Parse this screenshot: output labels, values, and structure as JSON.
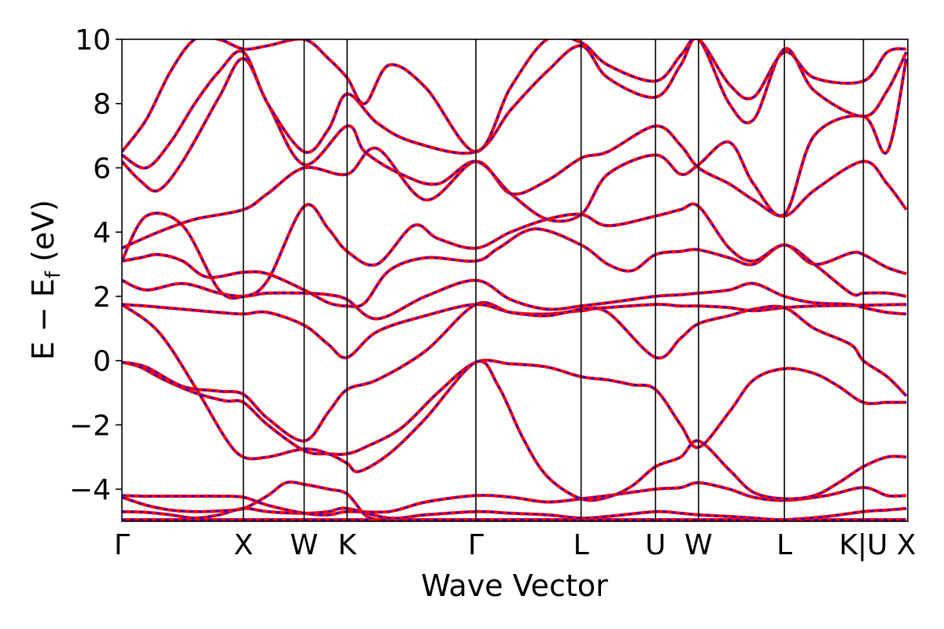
{
  "chart_data": {
    "type": "line",
    "title": "",
    "xlabel": "Wave Vector",
    "ylabel": "E − E",
    "ylabel_subscript": "f",
    "ylabel_unit": " (eV)",
    "ylim": [
      -5,
      10
    ],
    "yticks": [
      -4,
      -2,
      0,
      2,
      4,
      6,
      8,
      10
    ],
    "ytick_labels": [
      "−4",
      "−2",
      "0",
      "2",
      "4",
      "6",
      "8",
      "10"
    ],
    "xlim": [
      0,
      6.47
    ],
    "grid": false,
    "legend": "none",
    "high_symmetry_points": [
      {
        "label": "Γ",
        "x": 0.0
      },
      {
        "label": "X",
        "x": 1.0
      },
      {
        "label": "W",
        "x": 1.5
      },
      {
        "label": "K",
        "x": 1.854
      },
      {
        "label": "Γ",
        "x": 2.914
      },
      {
        "label": "L",
        "x": 3.78
      },
      {
        "label": "U",
        "x": 4.393
      },
      {
        "label": "W",
        "x": 4.747
      },
      {
        "label": "L",
        "x": 5.454
      },
      {
        "label": "K|U",
        "x": 6.104
      },
      {
        "label": "X",
        "x": 6.458
      }
    ],
    "series": [
      {
        "color_primary": "#ff0000",
        "color_overlay": "#0000ff",
        "bands": [
          {
            "x": [
              0,
              0.1,
              0.2,
              0.35,
              0.5,
              0.7,
              0.85,
              1.0,
              1.2,
              1.5,
              1.7,
              1.854,
              2.2,
              2.5,
              2.914,
              3.2,
              3.5,
              3.78,
              4.0,
              4.393,
              4.6,
              4.747,
              5.0,
              5.2,
              5.454,
              5.8,
              6.104,
              6.3,
              6.458
            ],
            "y": [
              -4.95,
              -4.95,
              -4.95,
              -4.95,
              -4.95,
              -4.95,
              -4.95,
              -4.95,
              -4.95,
              -4.95,
              -4.95,
              -4.95,
              -4.95,
              -4.95,
              -4.95,
              -4.95,
              -4.95,
              -4.95,
              -4.95,
              -4.95,
              -4.95,
              -4.95,
              -4.95,
              -4.95,
              -4.95,
              -4.95,
              -4.95,
              -4.95,
              -4.95
            ]
          },
          {
            "x": [
              0,
              0.2,
              0.4,
              0.6,
              0.8,
              1.0,
              1.2,
              1.5,
              1.7,
              1.854,
              2.2,
              2.5,
              2.914,
              3.2,
              3.5,
              3.78,
              4.0,
              4.393,
              4.6,
              4.747,
              5.0,
              5.2,
              5.454,
              5.8,
              6.104,
              6.3,
              6.458
            ],
            "y": [
              -4.7,
              -4.72,
              -4.8,
              -4.9,
              -4.8,
              -4.6,
              -4.7,
              -4.75,
              -4.7,
              -4.6,
              -4.9,
              -4.8,
              -4.7,
              -4.75,
              -4.8,
              -4.9,
              -4.85,
              -4.7,
              -4.75,
              -4.8,
              -4.85,
              -4.9,
              -4.95,
              -4.85,
              -4.7,
              -4.65,
              -4.6
            ]
          },
          {
            "x": [
              0,
              0.2,
              0.4,
              0.6,
              0.8,
              1.0,
              1.2,
              1.5,
              1.7,
              1.854,
              2.2,
              2.5,
              2.914,
              3.2,
              3.5,
              3.78,
              4.0,
              4.393,
              4.6,
              4.747,
              5.0,
              5.2,
              5.454,
              5.8,
              6.104,
              6.3,
              6.458
            ],
            "y": [
              -4.2,
              -4.22,
              -4.22,
              -4.22,
              -4.22,
              -4.25,
              -4.5,
              -4.75,
              -4.8,
              -4.7,
              -4.7,
              -4.4,
              -4.2,
              -4.25,
              -4.4,
              -4.3,
              -4.2,
              -4.0,
              -3.95,
              -3.8,
              -4.0,
              -4.25,
              -4.35,
              -4.2,
              -3.95,
              -4.2,
              -4.2
            ]
          },
          {
            "x": [
              0,
              0.2,
              0.4,
              0.6,
              0.8,
              1.0,
              1.2,
              1.35,
              1.5,
              1.7,
              1.854,
              2.0,
              2.1
            ],
            "y": [
              -4.25,
              -4.5,
              -4.65,
              -4.7,
              -4.68,
              -4.6,
              -4.2,
              -3.8,
              -3.85,
              -4.0,
              -4.15,
              -4.8,
              -4.95
            ]
          },
          {
            "x": [
              0,
              0.15,
              0.35,
              0.6,
              0.85,
              1.0,
              1.2,
              1.5,
              1.7,
              1.854,
              2.0,
              2.3,
              2.6,
              2.914,
              3.2,
              3.5,
              3.78,
              4.0,
              4.2,
              4.393,
              4.6,
              4.747,
              5.0,
              5.2,
              5.454,
              5.7,
              5.9,
              6.104,
              6.3,
              6.458
            ],
            "y": [
              -0.05,
              -0.2,
              -0.6,
              -1.0,
              -1.25,
              -1.3,
              -2.0,
              -2.8,
              -2.9,
              -2.9,
              -2.7,
              -2.1,
              -1.0,
              -0.05,
              -0.1,
              -0.2,
              -0.5,
              -0.6,
              -0.75,
              -0.9,
              -2.0,
              -2.7,
              -1.6,
              -0.6,
              -0.25,
              -0.4,
              -0.8,
              -1.3,
              -1.3,
              -1.3
            ]
          },
          {
            "x": [
              0,
              0.3,
              0.6,
              0.85,
              1.0,
              1.2,
              1.5,
              1.7,
              1.854,
              1.95,
              2.2,
              2.5,
              2.914,
              3.1,
              3.3,
              3.5,
              3.78,
              4.0,
              4.2,
              4.393,
              4.6,
              4.747,
              5.0,
              5.2,
              5.454,
              5.7,
              5.9,
              6.104,
              6.3,
              6.458
            ],
            "y": [
              1.75,
              0.9,
              -0.8,
              -2.4,
              -3.0,
              -3.0,
              -2.75,
              -2.9,
              -3.2,
              -3.45,
              -2.9,
              -1.8,
              -0.05,
              -0.8,
              -2.4,
              -3.6,
              -4.3,
              -4.25,
              -3.9,
              -3.3,
              -3.0,
              -2.5,
              -3.4,
              -4.1,
              -4.3,
              -4.2,
              -3.8,
              -3.3,
              -3.0,
              -3.0
            ]
          },
          {
            "x": [
              0,
              0.2,
              0.5,
              0.8,
              1.0,
              1.2,
              1.5,
              1.7,
              1.854,
              2.1,
              2.5,
              2.914,
              3.2,
              3.5,
              3.78,
              4.0,
              4.393,
              4.6,
              4.747,
              5.0,
              5.2,
              5.454,
              5.7,
              6.0,
              6.104,
              6.3,
              6.458
            ],
            "y": [
              -0.05,
              -0.2,
              -0.8,
              -0.95,
              -1.05,
              -1.8,
              -2.5,
              -1.6,
              -0.9,
              -0.6,
              0.3,
              1.75,
              1.5,
              1.45,
              1.55,
              1.5,
              0.1,
              0.7,
              1.15,
              1.4,
              1.6,
              1.65,
              1.0,
              0.5,
              0.0,
              -0.5,
              -1.1
            ]
          },
          {
            "x": [
              0,
              0.2,
              0.5,
              0.8,
              1.0,
              1.2,
              1.5,
              1.7,
              1.854,
              2.1,
              2.5,
              2.914,
              3.2,
              3.5,
              3.78,
              4.0,
              4.393,
              4.6,
              4.747,
              5.0,
              5.2,
              5.454,
              5.7,
              6.0,
              6.104,
              6.3,
              6.458
            ],
            "y": [
              1.75,
              1.7,
              1.6,
              1.5,
              1.45,
              1.5,
              1.1,
              0.5,
              0.1,
              0.9,
              1.4,
              1.75,
              1.5,
              1.4,
              1.6,
              1.65,
              1.75,
              1.7,
              1.7,
              1.65,
              1.55,
              1.65,
              1.7,
              1.72,
              1.72,
              1.74,
              1.75
            ]
          },
          {
            "x": [
              0,
              0.2,
              0.5,
              0.8,
              1.0,
              1.2,
              1.5,
              1.7,
              1.854,
              2.1,
              2.5,
              2.914,
              3.2,
              3.5,
              3.78,
              4.0,
              4.393,
              4.6,
              4.747,
              5.0,
              5.2,
              5.454,
              5.7,
              6.0,
              6.104,
              6.3,
              6.458
            ],
            "y": [
              2.5,
              2.2,
              2.4,
              2.1,
              2.0,
              2.1,
              2.1,
              2.05,
              1.9,
              1.3,
              2.0,
              2.5,
              1.9,
              1.6,
              1.7,
              1.8,
              2.0,
              2.05,
              2.1,
              2.2,
              2.4,
              2.0,
              1.8,
              1.75,
              1.65,
              1.5,
              1.45
            ]
          },
          {
            "x": [
              0,
              0.15,
              0.3,
              0.5,
              0.7,
              1.0,
              1.2,
              1.5,
              1.7,
              1.854,
              2.0,
              2.2,
              2.5,
              2.914,
              3.1,
              3.4,
              3.78,
              4.0,
              4.2,
              4.393,
              4.6,
              4.747,
              5.0,
              5.2,
              5.454,
              5.7,
              6.0,
              6.104,
              6.3,
              6.458
            ],
            "y": [
              3.1,
              3.2,
              3.3,
              3.1,
              2.6,
              2.75,
              2.7,
              2.2,
              1.8,
              1.7,
              1.8,
              2.8,
              3.2,
              3.1,
              3.5,
              4.1,
              3.6,
              3.0,
              2.8,
              3.3,
              3.4,
              3.45,
              3.2,
              3.0,
              3.6,
              3.0,
              3.35,
              3.3,
              2.9,
              2.7
            ]
          },
          {
            "x": [
              0,
              0.2,
              0.5,
              0.8,
              1.0,
              1.2,
              1.5,
              1.7,
              1.854,
              2.1,
              2.4,
              2.6,
              2.914,
              3.2,
              3.5,
              3.78,
              4.0,
              4.393,
              4.6,
              4.747,
              5.0,
              5.2,
              5.454,
              5.7,
              6.0,
              6.104,
              6.3,
              6.458
            ],
            "y": [
              3.1,
              4.5,
              4.2,
              2.2,
              2.0,
              2.5,
              4.8,
              4.1,
              3.4,
              3.0,
              4.2,
              3.8,
              3.5,
              4.0,
              4.4,
              4.55,
              4.2,
              4.5,
              4.7,
              4.8,
              3.5,
              3.1,
              3.6,
              3.0,
              2.1,
              2.1,
              2.1,
              2.0
            ]
          },
          {
            "x": [
              0,
              0.3,
              0.6,
              1.0,
              1.2,
              1.5,
              1.854,
              2.1,
              2.5,
              2.914,
              3.2,
              3.5,
              3.78,
              4.0,
              4.393,
              4.6,
              4.747,
              5.0,
              5.2,
              5.454,
              5.7,
              6.104,
              6.3,
              6.458
            ],
            "y": [
              3.5,
              4.0,
              4.4,
              4.7,
              5.2,
              6.0,
              5.8,
              6.6,
              5.0,
              6.2,
              5.2,
              5.6,
              6.3,
              6.5,
              7.3,
              6.7,
              6.0,
              5.5,
              5.0,
              4.5,
              5.3,
              6.2,
              5.5,
              4.7
            ]
          },
          {
            "x": [
              0,
              0.15,
              0.3,
              0.5,
              0.8,
              1.0,
              1.2,
              1.5,
              1.854,
              2.0,
              2.3,
              2.6,
              2.914,
              3.2,
              3.5,
              3.78,
              4.0,
              4.393,
              4.6,
              4.747,
              5.0,
              5.2,
              5.454,
              5.7,
              6.104,
              6.3,
              6.458
            ],
            "y": [
              6.2,
              5.6,
              5.3,
              6.2,
              8.2,
              9.4,
              8.0,
              6.1,
              7.3,
              6.5,
              5.8,
              5.5,
              6.2,
              5.2,
              4.4,
              4.55,
              5.8,
              6.4,
              5.8,
              6.1,
              6.8,
              5.5,
              4.55,
              7.0,
              7.6,
              6.5,
              9.4
            ]
          },
          {
            "x": [
              0,
              0.2,
              0.4,
              0.6,
              0.8,
              1.0,
              1.2,
              1.5,
              1.7,
              1.854,
              2.1,
              2.4,
              2.914,
              3.2,
              3.5,
              3.78,
              4.0,
              4.393,
              4.6,
              4.747,
              5.0,
              5.2,
              5.454,
              5.7,
              6.104,
              6.3,
              6.458
            ],
            "y": [
              6.4,
              6.0,
              6.8,
              8.0,
              9.0,
              9.6,
              8.0,
              6.5,
              7.2,
              8.3,
              7.4,
              6.8,
              6.5,
              7.8,
              9.0,
              9.8,
              8.8,
              8.2,
              9.2,
              10.0,
              8.0,
              7.5,
              9.7,
              8.4,
              7.6,
              8.4,
              9.6
            ]
          },
          {
            "x": [
              0,
              0.2,
              0.4,
              0.6,
              0.8,
              1.0,
              1.2,
              1.5,
              1.7,
              1.854,
              2.0,
              2.2,
              2.5,
              2.914,
              3.2,
              3.5,
              3.78,
              4.0,
              4.393,
              4.6,
              4.747,
              5.0,
              5.2,
              5.454,
              5.7,
              6.104,
              6.3,
              6.458
            ],
            "y": [
              6.5,
              7.5,
              9.0,
              10.0,
              10.0,
              9.7,
              9.8,
              10.0,
              9.4,
              8.8,
              8.0,
              9.2,
              8.5,
              6.5,
              8.5,
              10.0,
              9.9,
              9.2,
              8.7,
              9.5,
              10.0,
              8.6,
              8.2,
              9.6,
              8.8,
              8.7,
              9.6,
              9.7
            ]
          }
        ]
      }
    ]
  }
}
